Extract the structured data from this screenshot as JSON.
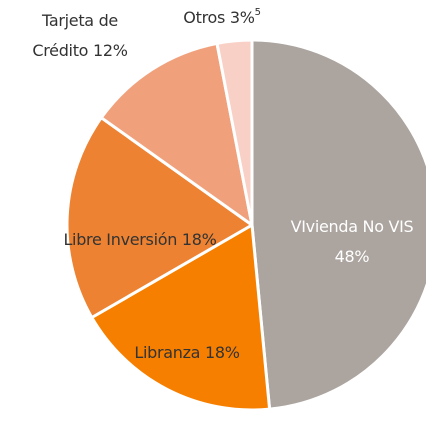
{
  "chart_data": {
    "type": "pie",
    "categories": [
      "VIvienda No VIS",
      "Libranza",
      "Libre Inversión",
      "Tarjeta de Crédito",
      "Otros"
    ],
    "values": [
      48,
      18,
      18,
      12,
      3
    ],
    "value_labels": [
      "48%",
      "18%",
      "18%",
      "12%",
      "3%"
    ],
    "colors": [
      "#aba49f",
      "#f77f00",
      "#ec8232",
      "#f0a17c",
      "#f8d0c6"
    ],
    "footnote": "5"
  }
}
